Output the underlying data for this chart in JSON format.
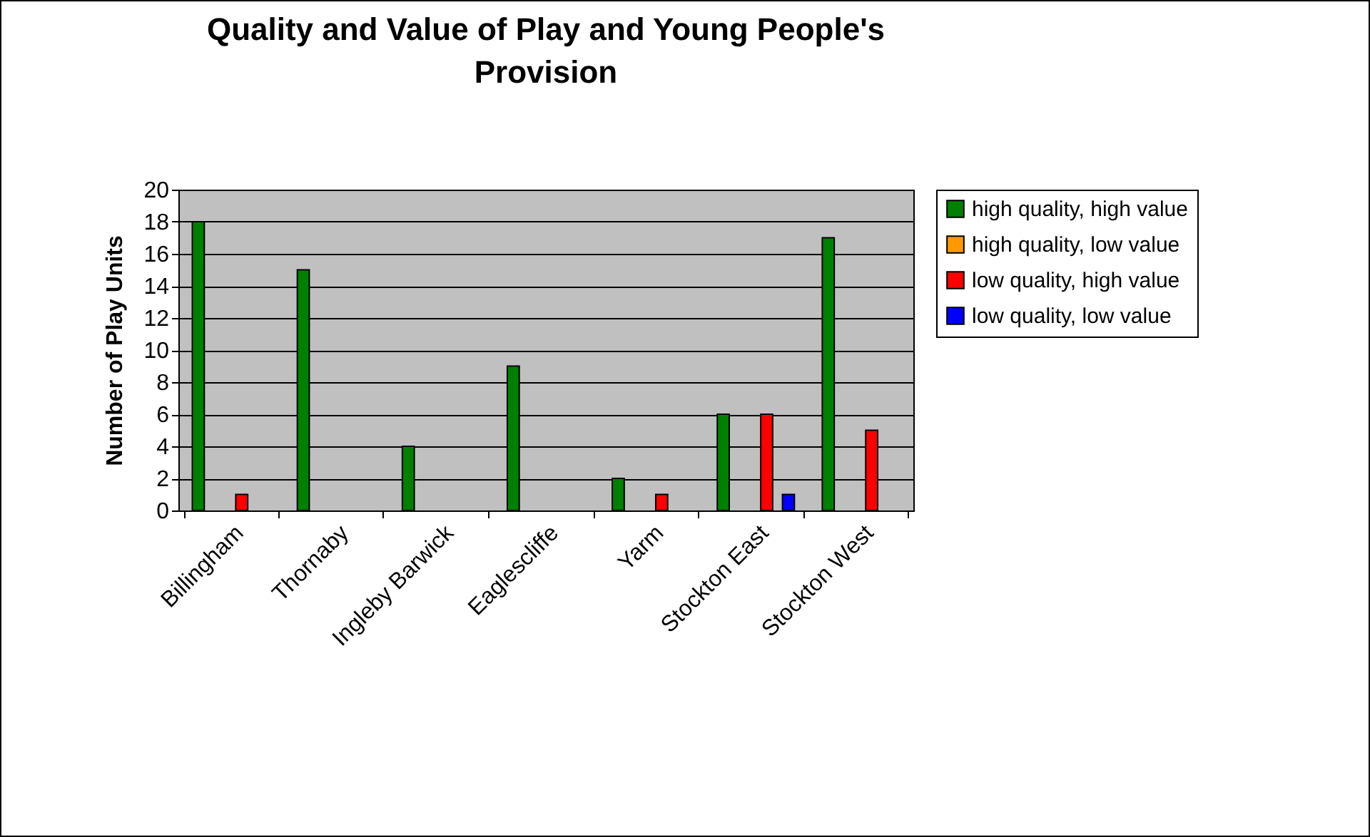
{
  "chart_data": {
    "type": "bar",
    "title": "Quality and Value of Play and Young People's Provision",
    "ylabel": "Number of Play Units",
    "categories": [
      "Billingham",
      "Thornaby",
      "Ingleby Barwick",
      "Eaglescliffe",
      "Yarm",
      "Stockton East",
      "Stockton West"
    ],
    "series": [
      {
        "name": "high quality, high value",
        "color": "#008000",
        "values": [
          18,
          15,
          4,
          9,
          2,
          6,
          17
        ]
      },
      {
        "name": "high quality, low value",
        "color": "#ff9900",
        "values": [
          0,
          0,
          0,
          0,
          0,
          0,
          0
        ]
      },
      {
        "name": "low quality, high value",
        "color": "#ff0000",
        "values": [
          1,
          0,
          0,
          0,
          1,
          6,
          5
        ]
      },
      {
        "name": "low quality, low value",
        "color": "#0000ff",
        "values": [
          0,
          0,
          0,
          0,
          0,
          1,
          0
        ]
      }
    ],
    "ylim": [
      0,
      20
    ],
    "yticks": [
      0,
      2,
      4,
      6,
      8,
      10,
      12,
      14,
      16,
      18,
      20
    ],
    "grid": "y",
    "legend": "right"
  }
}
